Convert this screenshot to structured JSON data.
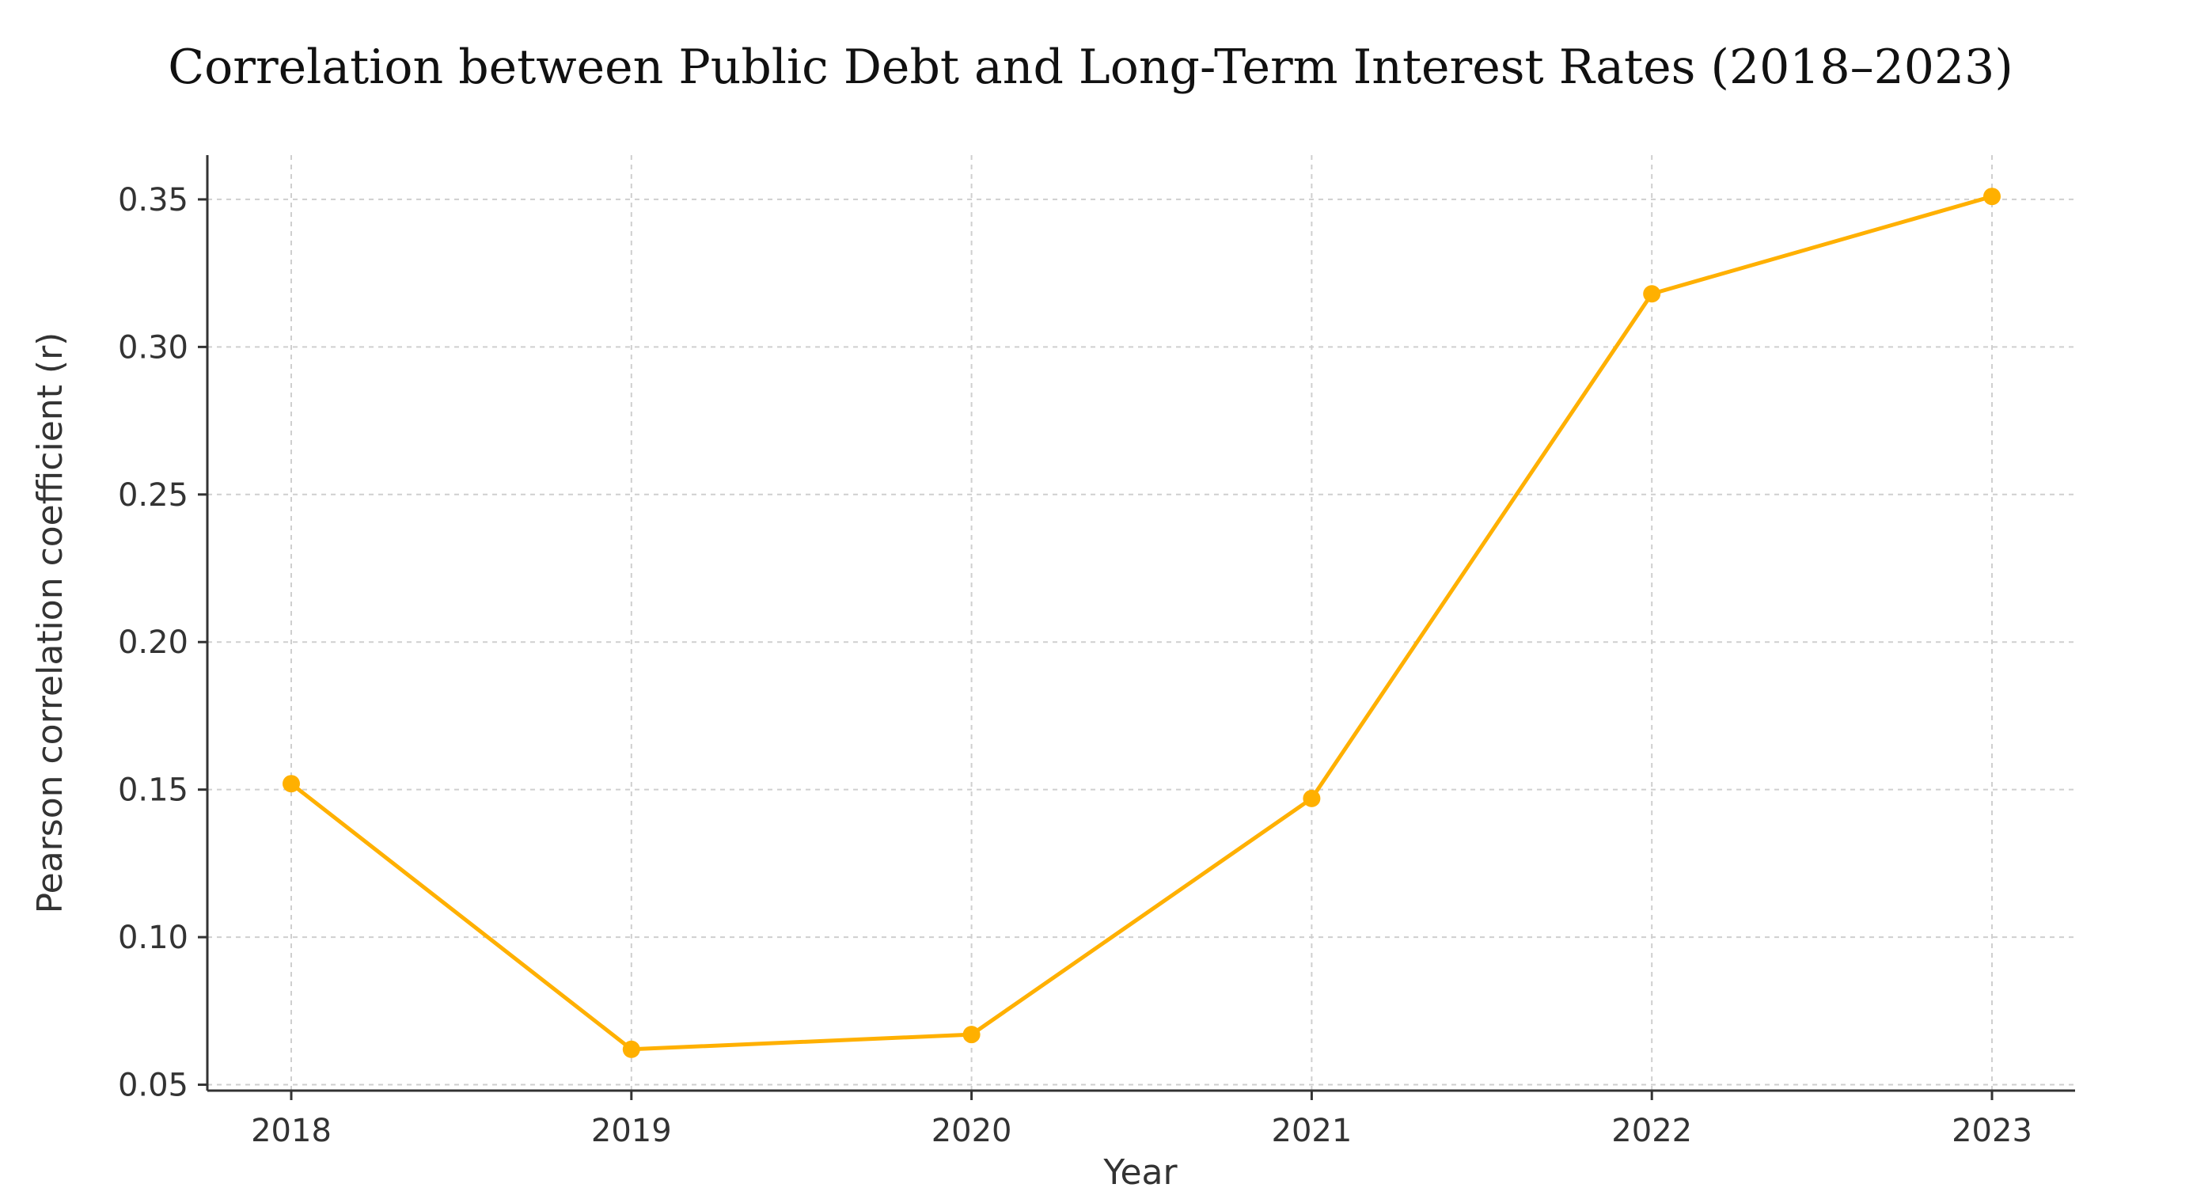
{
  "chart_data": {
    "type": "line",
    "title": "Correlation between Public Debt and Long-Term Interest Rates (2018–2023)",
    "xlabel": "Year",
    "ylabel": "Pearson correlation coefficient (r)",
    "categories": [
      "2018",
      "2019",
      "2020",
      "2021",
      "2022",
      "2023"
    ],
    "series": [
      {
        "values": [
          0.152,
          0.062,
          0.067,
          0.147,
          0.318,
          0.351
        ]
      }
    ],
    "ylim": [
      0.048,
      0.365
    ],
    "yticks": [
      "0.05",
      "0.10",
      "0.15",
      "0.20",
      "0.25",
      "0.30",
      "0.35"
    ],
    "grid": true,
    "colors": {
      "line": "#FFB000",
      "marker": "#FFB000"
    }
  }
}
